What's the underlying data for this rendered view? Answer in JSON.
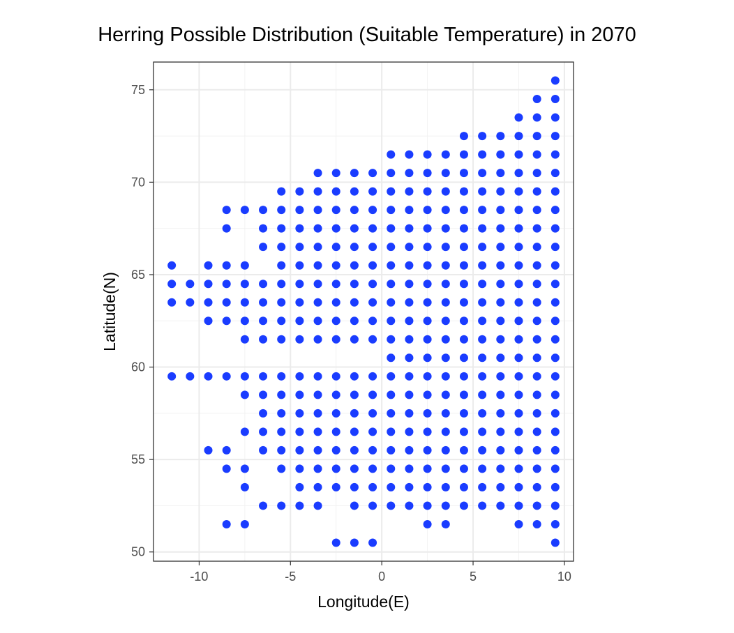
{
  "chart_data": {
    "type": "scatter",
    "title": "Herring Possible Distribution (Suitable Temperature) in 2070",
    "xlabel": "Longitude(E)",
    "ylabel": "Latitude(N)",
    "xlim": [
      -12.5,
      10.5
    ],
    "ylim": [
      49.5,
      76.5
    ],
    "xticks": [
      -10,
      -5,
      0,
      5,
      10
    ],
    "yticks": [
      50,
      55,
      60,
      65,
      70,
      75
    ],
    "xtick_labels": [
      "-10",
      "-5",
      "0",
      "5",
      "10"
    ],
    "ytick_labels": [
      "50",
      "55",
      "60",
      "65",
      "70",
      "75"
    ],
    "grid": true,
    "point_color": "#1a3cff",
    "rows": [
      {
        "y": 75.5,
        "x": [
          9.5
        ]
      },
      {
        "y": 74.5,
        "x": [
          8.5,
          9.5
        ]
      },
      {
        "y": 73.5,
        "x": [
          7.5,
          8.5,
          9.5
        ]
      },
      {
        "y": 72.5,
        "x": [
          4.5,
          5.5,
          6.5,
          7.5,
          8.5,
          9.5
        ]
      },
      {
        "y": 71.5,
        "x": [
          0.5,
          1.5,
          2.5,
          3.5,
          4.5,
          5.5,
          6.5,
          7.5,
          8.5,
          9.5
        ]
      },
      {
        "y": 70.5,
        "x": [
          -3.5,
          -2.5,
          -1.5,
          -0.5,
          0.5,
          1.5,
          2.5,
          3.5,
          4.5,
          5.5,
          6.5,
          7.5,
          8.5,
          9.5
        ]
      },
      {
        "y": 69.5,
        "x": [
          -5.5,
          -4.5,
          -3.5,
          -2.5,
          -1.5,
          -0.5,
          0.5,
          1.5,
          2.5,
          3.5,
          4.5,
          5.5,
          6.5,
          7.5,
          8.5,
          9.5
        ]
      },
      {
        "y": 68.5,
        "x": [
          -8.5,
          -7.5,
          -6.5,
          -5.5,
          -4.5,
          -3.5,
          -2.5,
          -1.5,
          -0.5,
          0.5,
          1.5,
          2.5,
          3.5,
          4.5,
          5.5,
          6.5,
          7.5,
          8.5,
          9.5
        ]
      },
      {
        "y": 67.5,
        "x": [
          -8.5,
          -6.5,
          -5.5,
          -4.5,
          -3.5,
          -2.5,
          -1.5,
          -0.5,
          0.5,
          1.5,
          2.5,
          3.5,
          4.5,
          5.5,
          6.5,
          7.5,
          8.5,
          9.5
        ]
      },
      {
        "y": 66.5,
        "x": [
          -6.5,
          -5.5,
          -4.5,
          -3.5,
          -2.5,
          -1.5,
          -0.5,
          0.5,
          1.5,
          2.5,
          3.5,
          4.5,
          5.5,
          6.5,
          7.5,
          8.5,
          9.5
        ]
      },
      {
        "y": 65.5,
        "x": [
          -11.5,
          -9.5,
          -8.5,
          -7.5,
          -5.5,
          -4.5,
          -3.5,
          -2.5,
          -1.5,
          -0.5,
          0.5,
          1.5,
          2.5,
          3.5,
          4.5,
          5.5,
          6.5,
          7.5,
          8.5,
          9.5
        ]
      },
      {
        "y": 64.5,
        "x": [
          -11.5,
          -10.5,
          -9.5,
          -8.5,
          -7.5,
          -6.5,
          -5.5,
          -4.5,
          -3.5,
          -2.5,
          -1.5,
          -0.5,
          0.5,
          1.5,
          2.5,
          3.5,
          4.5,
          5.5,
          6.5,
          7.5,
          8.5,
          9.5
        ]
      },
      {
        "y": 63.5,
        "x": [
          -11.5,
          -10.5,
          -9.5,
          -8.5,
          -7.5,
          -6.5,
          -5.5,
          -4.5,
          -3.5,
          -2.5,
          -1.5,
          -0.5,
          0.5,
          1.5,
          2.5,
          3.5,
          4.5,
          5.5,
          6.5,
          7.5,
          8.5,
          9.5
        ]
      },
      {
        "y": 62.5,
        "x": [
          -9.5,
          -8.5,
          -7.5,
          -6.5,
          -5.5,
          -4.5,
          -3.5,
          -2.5,
          -1.5,
          -0.5,
          0.5,
          1.5,
          2.5,
          3.5,
          4.5,
          5.5,
          6.5,
          7.5,
          8.5,
          9.5
        ]
      },
      {
        "y": 61.5,
        "x": [
          -7.5,
          -6.5,
          -5.5,
          -4.5,
          -3.5,
          -2.5,
          -1.5,
          -0.5,
          0.5,
          1.5,
          2.5,
          3.5,
          4.5,
          5.5,
          6.5,
          7.5,
          8.5,
          9.5
        ]
      },
      {
        "y": 60.5,
        "x": [
          0.5,
          1.5,
          2.5,
          3.5,
          4.5,
          5.5,
          6.5,
          7.5,
          8.5,
          9.5
        ]
      },
      {
        "y": 59.5,
        "x": [
          -11.5,
          -10.5,
          -9.5,
          -8.5,
          -7.5,
          -6.5,
          -5.5,
          -4.5,
          -3.5,
          -2.5,
          -1.5,
          -0.5,
          0.5,
          1.5,
          2.5,
          3.5,
          4.5,
          5.5,
          6.5,
          7.5,
          8.5,
          9.5
        ]
      },
      {
        "y": 58.5,
        "x": [
          -7.5,
          -6.5,
          -5.5,
          -4.5,
          -3.5,
          -2.5,
          -1.5,
          -0.5,
          0.5,
          1.5,
          2.5,
          3.5,
          4.5,
          5.5,
          6.5,
          7.5,
          8.5,
          9.5
        ]
      },
      {
        "y": 57.5,
        "x": [
          -6.5,
          -5.5,
          -4.5,
          -3.5,
          -2.5,
          -1.5,
          -0.5,
          0.5,
          1.5,
          2.5,
          3.5,
          4.5,
          5.5,
          6.5,
          7.5,
          8.5,
          9.5
        ]
      },
      {
        "y": 56.5,
        "x": [
          -7.5,
          -6.5,
          -5.5,
          -4.5,
          -3.5,
          -2.5,
          -1.5,
          -0.5,
          0.5,
          1.5,
          2.5,
          3.5,
          4.5,
          5.5,
          6.5,
          7.5,
          8.5,
          9.5
        ]
      },
      {
        "y": 55.5,
        "x": [
          -9.5,
          -8.5,
          -6.5,
          -5.5,
          -4.5,
          -3.5,
          -2.5,
          -1.5,
          -0.5,
          0.5,
          1.5,
          2.5,
          3.5,
          4.5,
          5.5,
          6.5,
          7.5,
          8.5,
          9.5
        ]
      },
      {
        "y": 54.5,
        "x": [
          -8.5,
          -7.5,
          -5.5,
          -4.5,
          -3.5,
          -2.5,
          -1.5,
          -0.5,
          0.5,
          1.5,
          2.5,
          3.5,
          4.5,
          5.5,
          6.5,
          7.5,
          8.5,
          9.5
        ]
      },
      {
        "y": 53.5,
        "x": [
          -7.5,
          -4.5,
          -3.5,
          -2.5,
          -1.5,
          -0.5,
          0.5,
          1.5,
          2.5,
          3.5,
          4.5,
          5.5,
          6.5,
          7.5,
          8.5,
          9.5
        ]
      },
      {
        "y": 52.5,
        "x": [
          -6.5,
          -5.5,
          -4.5,
          -3.5,
          -1.5,
          -0.5,
          0.5,
          1.5,
          2.5,
          3.5,
          4.5,
          5.5,
          6.5,
          7.5,
          8.5,
          9.5
        ]
      },
      {
        "y": 51.5,
        "x": [
          -8.5,
          -7.5,
          2.5,
          3.5,
          7.5,
          8.5,
          9.5
        ]
      },
      {
        "y": 50.5,
        "x": [
          -2.5,
          -1.5,
          -0.5,
          9.5
        ]
      }
    ]
  }
}
